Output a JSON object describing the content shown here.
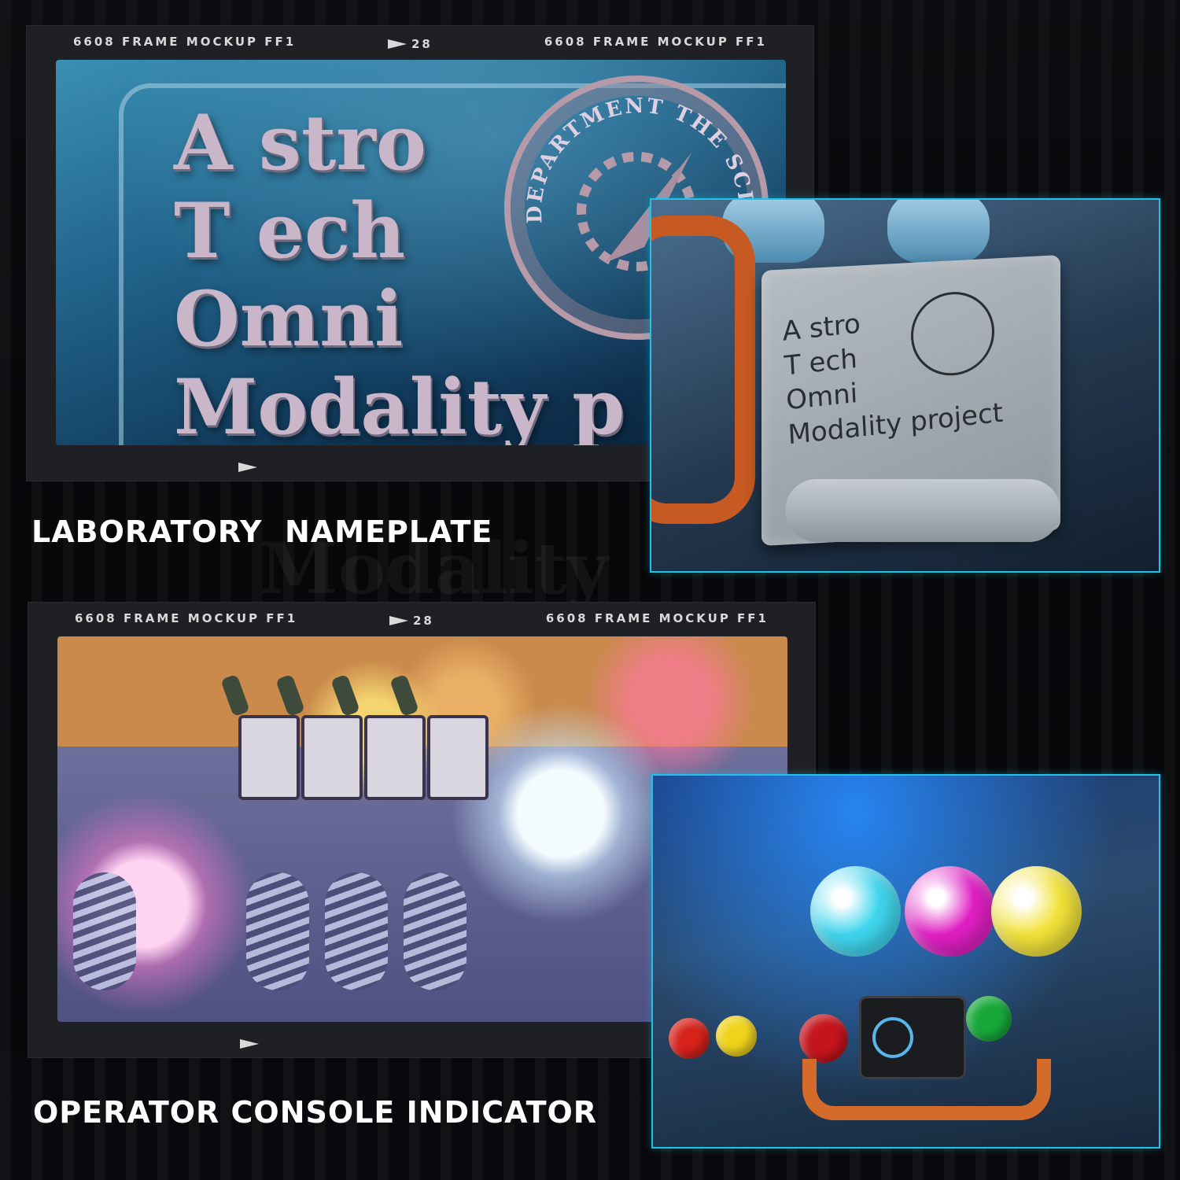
{
  "frame_header": {
    "left_label": "6608 FRAME MOCKUP FF1",
    "frame_number": "28",
    "right_label": "6608 FRAME MOCKUP FF1"
  },
  "sections": [
    {
      "caption": "LABORATORY  NAMEPLATE",
      "scene_sign_lines": [
        "A stro",
        "T ech",
        "Omni",
        "Modality p"
      ],
      "seal_text": "DEPARTMENT THE SCIENCE",
      "photo_engraving_lines": [
        "A stro",
        "T ech",
        "Omni",
        "Modality project"
      ]
    },
    {
      "caption": "OPERATOR CONSOLE INDICATOR",
      "orb_colors": [
        "#3fd6ee",
        "#e01fc4",
        "#f2e23a"
      ],
      "knob_colors": [
        "#d6221a",
        "#f0d21c",
        "#c4141c",
        "#18a83a"
      ]
    }
  ],
  "accent_color": "#1fc3e8"
}
